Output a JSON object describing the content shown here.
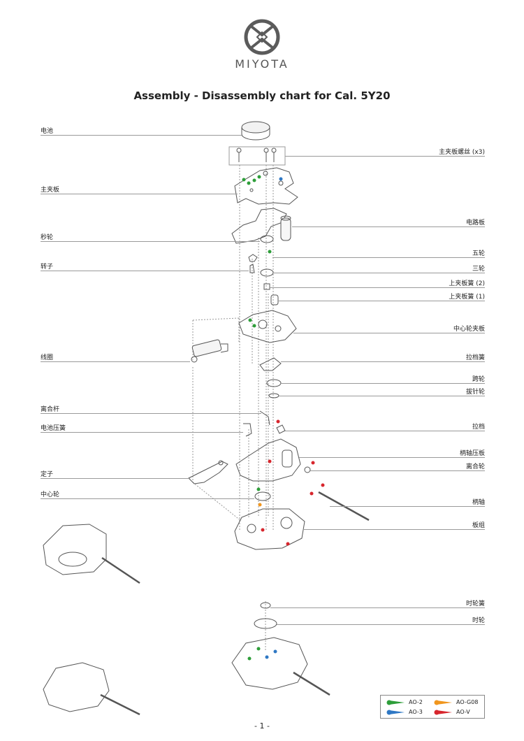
{
  "brand": {
    "name": "MIYOTA"
  },
  "title": "Assembly - Disassembly chart for Cal. 5Y20",
  "labels": {
    "battery": "电池",
    "main_plate": "主夹板",
    "second_wheel": "秒轮",
    "rotor": "转子",
    "coil": "线圈",
    "clutch_lever": "离合杆",
    "battery_spring": "电池压簧",
    "stator": "定子",
    "center_wheel": "中心轮",
    "main_plate_screws": "主夹板螺丝 (x3)",
    "circuit_board": "电路板",
    "fifth_wheel": "五轮",
    "third_wheel": "三轮",
    "upper_plate_spring_2": "上夹板簧 (2)",
    "upper_plate_spring_1": "上夹板簧 (1)",
    "center_wheel_bridge": "中心轮夹板",
    "setting_spring": "拉档簧",
    "minute_wheel": "跨轮",
    "setting_wheel": "拔针轮",
    "setting_lever": "拉档",
    "stem_holder": "柄轴压板",
    "clutch_wheel": "离合轮",
    "stem": "柄轴",
    "plate_assembly": "板组",
    "hour_wheel_spring": "时轮簧",
    "hour_wheel": "时轮"
  },
  "legend": {
    "items": [
      {
        "label": "AO-2",
        "color": "#2e9e3a"
      },
      {
        "label": "AO-G08",
        "color": "#f0961e"
      },
      {
        "label": "AO-3",
        "color": "#2f78c4"
      },
      {
        "label": "AO-V",
        "color": "#d7262d"
      }
    ]
  },
  "page_number": "- 1 -"
}
